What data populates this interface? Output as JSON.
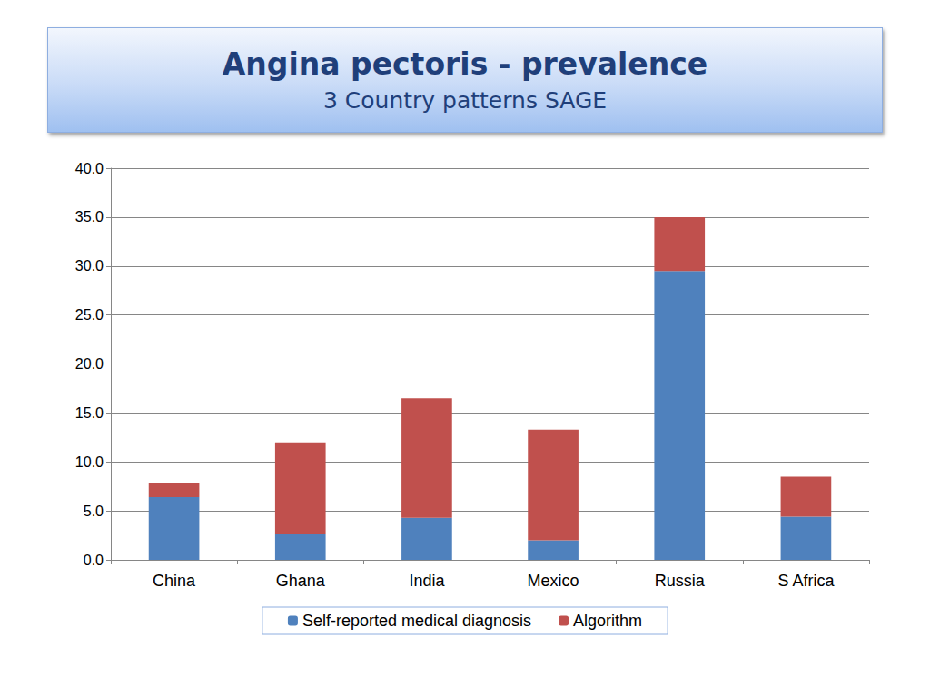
{
  "chart_data": {
    "type": "bar",
    "title": "Angina pectoris - prevalence",
    "subtitle": "3 Country patterns SAGE",
    "categories": [
      "China",
      "Ghana",
      "India",
      "Mexico",
      "Russia",
      "S Africa"
    ],
    "series": [
      {
        "name": "Self-reported medical diagnosis",
        "color": "#4f81bd",
        "values": [
          6.4,
          2.6,
          4.3,
          2.0,
          29.5,
          4.4
        ]
      },
      {
        "name": "Algorithm",
        "color": "#c0504d",
        "values": [
          1.5,
          9.4,
          12.2,
          11.3,
          5.5,
          4.1
        ]
      }
    ],
    "stacked": true,
    "ylim": [
      0,
      40
    ],
    "yticks": [
      {
        "value": 0,
        "label": "0.0"
      },
      {
        "value": 5,
        "label": "5.0"
      },
      {
        "value": 10,
        "label": "10.0"
      },
      {
        "value": 15,
        "label": "15.0"
      },
      {
        "value": 20,
        "label": "20.0"
      },
      {
        "value": 25,
        "label": "25.0"
      },
      {
        "value": 30,
        "label": "30.0"
      },
      {
        "value": 35,
        "label": "35.0"
      },
      {
        "value": 40,
        "label": "40.0"
      }
    ],
    "grid": true,
    "legend": "bottom"
  }
}
